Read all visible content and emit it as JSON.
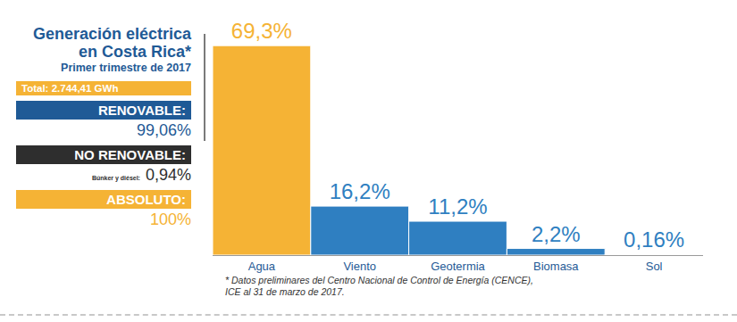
{
  "chart_data": {
    "type": "bar",
    "title": "Generación eléctrica en Costa Rica*",
    "subtitle": "Primer trimestre de 2017",
    "categories": [
      "Agua",
      "Viento",
      "Geotermia",
      "Biomasa",
      "Sol"
    ],
    "values": [
      69.3,
      16.2,
      11.2,
      2.2,
      0.16
    ],
    "value_labels": [
      "69,3%",
      "16,2%",
      "11,2%",
      "2,2%",
      "0,16%"
    ],
    "colors": [
      "#f5b335",
      "#2f7fc1",
      "#2f7fc1",
      "#2f7fc1",
      "#2f7fc1"
    ],
    "ylim": [
      0,
      72
    ],
    "grid": false,
    "data_labels": true,
    "tick_labels": "x",
    "annotations": [
      "* Datos preliminares del Centro Nacional de Control de Energía (CENCE), ICE al 31 de marzo de 2017."
    ]
  },
  "summary": {
    "total": "Total: 2.744,41 GWh",
    "renovable": {
      "label": "RENOVABLE:",
      "value": "99,06%"
    },
    "no_renovable": {
      "label": "NO RENOVABLE:",
      "note": "Búnker y diésel:",
      "value": "0,94%"
    },
    "absoluto": {
      "label": "ABSOLUTO:",
      "value": "100%"
    }
  }
}
